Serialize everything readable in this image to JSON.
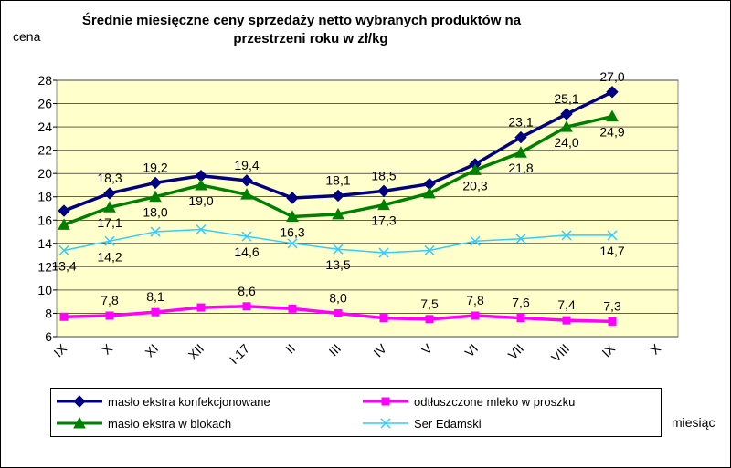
{
  "chart_data": {
    "type": "line",
    "title": [
      "Średnie miesięczne ceny sprzedaży netto  wybranych produktów na",
      "przestrzeni roku w zł/kg"
    ],
    "y_label": "cena",
    "x_label": "miesiąc",
    "categories": [
      "IX",
      "X",
      "XI",
      "XII",
      "I-17",
      "II",
      "III",
      "IV",
      "V",
      "VI",
      "VII",
      "VIII",
      "IX",
      "X"
    ],
    "ylim": [
      6,
      28
    ],
    "yticks": [
      6,
      8,
      10,
      12,
      14,
      16,
      18,
      20,
      22,
      24,
      26,
      28
    ],
    "grid": true,
    "series": [
      {
        "name": "masło ekstra konfekcjonowane",
        "color": "#000080",
        "marker": "diamond",
        "label_side": "above",
        "values": [
          16.8,
          18.3,
          19.2,
          19.8,
          19.4,
          17.9,
          18.1,
          18.5,
          19.1,
          20.8,
          23.1,
          25.1,
          27.0,
          null
        ],
        "value_labels": [
          null,
          "18,3",
          "19,2",
          null,
          "19,4",
          null,
          "18,1",
          "18,5",
          null,
          null,
          "23,1",
          "25,1",
          "27,0",
          null
        ]
      },
      {
        "name": "odtłuszczone mleko w proszku",
        "color": "#ff00ff",
        "marker": "square",
        "label_side": "above",
        "values": [
          7.7,
          7.8,
          8.1,
          8.5,
          8.6,
          8.4,
          8.0,
          7.6,
          7.5,
          7.8,
          7.6,
          7.4,
          7.3,
          null
        ],
        "value_labels": [
          null,
          "7,8",
          "8,1",
          null,
          "8,6",
          null,
          "8,0",
          null,
          "7,5",
          "7,8",
          "7,6",
          "7,4",
          "7,3",
          null
        ]
      },
      {
        "name": "masło ekstra w blokach",
        "color": "#008000",
        "marker": "triangle",
        "label_side": "below",
        "values": [
          15.6,
          17.1,
          18.0,
          19.0,
          18.2,
          16.3,
          16.5,
          17.3,
          18.3,
          20.3,
          21.8,
          24.0,
          24.9,
          null
        ],
        "value_labels": [
          null,
          "17,1",
          "18,0",
          "19,0",
          null,
          "16,3",
          null,
          "17,3",
          null,
          "20,3",
          "21,8",
          "24,0",
          "24,9",
          null
        ]
      },
      {
        "name": "Ser Edamski",
        "color": "#33ccff",
        "marker": "x",
        "label_side": "below",
        "values": [
          13.4,
          14.2,
          15.0,
          15.2,
          14.6,
          14.0,
          13.5,
          13.2,
          13.4,
          14.2,
          14.4,
          14.7,
          14.7,
          null
        ],
        "value_labels": [
          "13,4",
          "14,2",
          null,
          null,
          "14,6",
          null,
          "13,5",
          null,
          null,
          null,
          null,
          null,
          "14,7",
          null
        ]
      }
    ]
  }
}
